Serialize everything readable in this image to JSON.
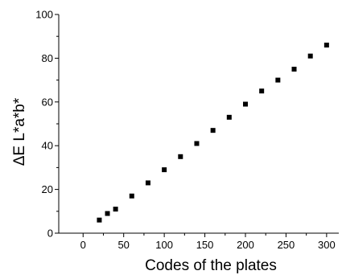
{
  "chart_data": {
    "type": "scatter",
    "xlabel": "Codes of the plates",
    "ylabel": "ΔE L*a*b*",
    "xlim": [
      -30,
      315
    ],
    "ylim": [
      0,
      100
    ],
    "x_ticks": [
      0,
      50,
      100,
      150,
      200,
      250,
      300
    ],
    "y_ticks": [
      0,
      20,
      40,
      60,
      80,
      100
    ],
    "grid": false,
    "marker": "square",
    "marker_color": "#000000",
    "series": [
      {
        "x": [
          20,
          30,
          40,
          60,
          80,
          100,
          120,
          140,
          160,
          180,
          200,
          220,
          240,
          260,
          280,
          300
        ],
        "y": [
          6,
          9,
          11,
          17,
          23,
          29,
          35,
          41,
          47,
          53,
          59,
          65,
          70,
          75,
          81,
          86
        ]
      }
    ]
  }
}
